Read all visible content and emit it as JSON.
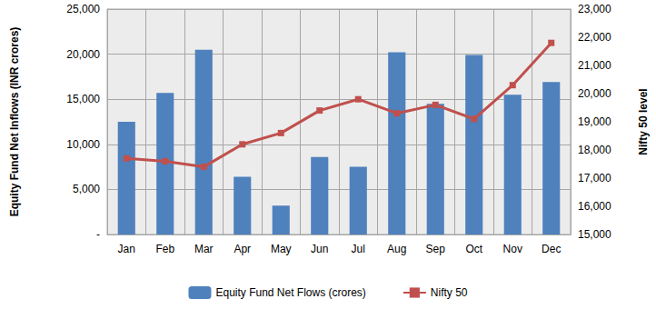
{
  "chart_data": {
    "type": "bar",
    "categories": [
      "Jan",
      "Feb",
      "Mar",
      "Apr",
      "May",
      "Jun",
      "Jul",
      "Aug",
      "Sep",
      "Oct",
      "Nov",
      "Dec"
    ],
    "series": [
      {
        "name": "Equity Fund Net Flows (crores)",
        "type": "bar",
        "color": "#4f81bd",
        "values": [
          12500,
          15700,
          20500,
          6400,
          3200,
          8600,
          7500,
          20200,
          14500,
          19900,
          15500,
          16900
        ]
      },
      {
        "name": "Nifty 50",
        "type": "line",
        "color": "#c0504d",
        "marker": "square",
        "axis": "y2",
        "values": [
          17700,
          17600,
          17400,
          18200,
          18600,
          19400,
          19800,
          19300,
          19600,
          19100,
          20300,
          21800
        ]
      }
    ],
    "ylabel": "Equity Fund Net Inflows (INR crores)",
    "y2label": "Nifty 50 level",
    "ylim": [
      0,
      25000
    ],
    "yticks": [
      {
        "value": 0,
        "label": "-"
      },
      {
        "value": 5000,
        "label": "5,000"
      },
      {
        "value": 10000,
        "label": "10,000"
      },
      {
        "value": 15000,
        "label": "15,000"
      },
      {
        "value": 20000,
        "label": "20,000"
      },
      {
        "value": 25000,
        "label": "25,000"
      }
    ],
    "y2lim": [
      15000,
      23000
    ],
    "y2ticks": [
      {
        "value": 15000,
        "label": "15,000"
      },
      {
        "value": 16000,
        "label": "16,000"
      },
      {
        "value": 17000,
        "label": "17,000"
      },
      {
        "value": 18000,
        "label": "18,000"
      },
      {
        "value": 19000,
        "label": "19,000"
      },
      {
        "value": 20000,
        "label": "20,000"
      },
      {
        "value": 21000,
        "label": "21,000"
      },
      {
        "value": 22000,
        "label": "22,000"
      },
      {
        "value": 23000,
        "label": "23,000"
      }
    ],
    "grid": true,
    "legend": "bottom"
  }
}
